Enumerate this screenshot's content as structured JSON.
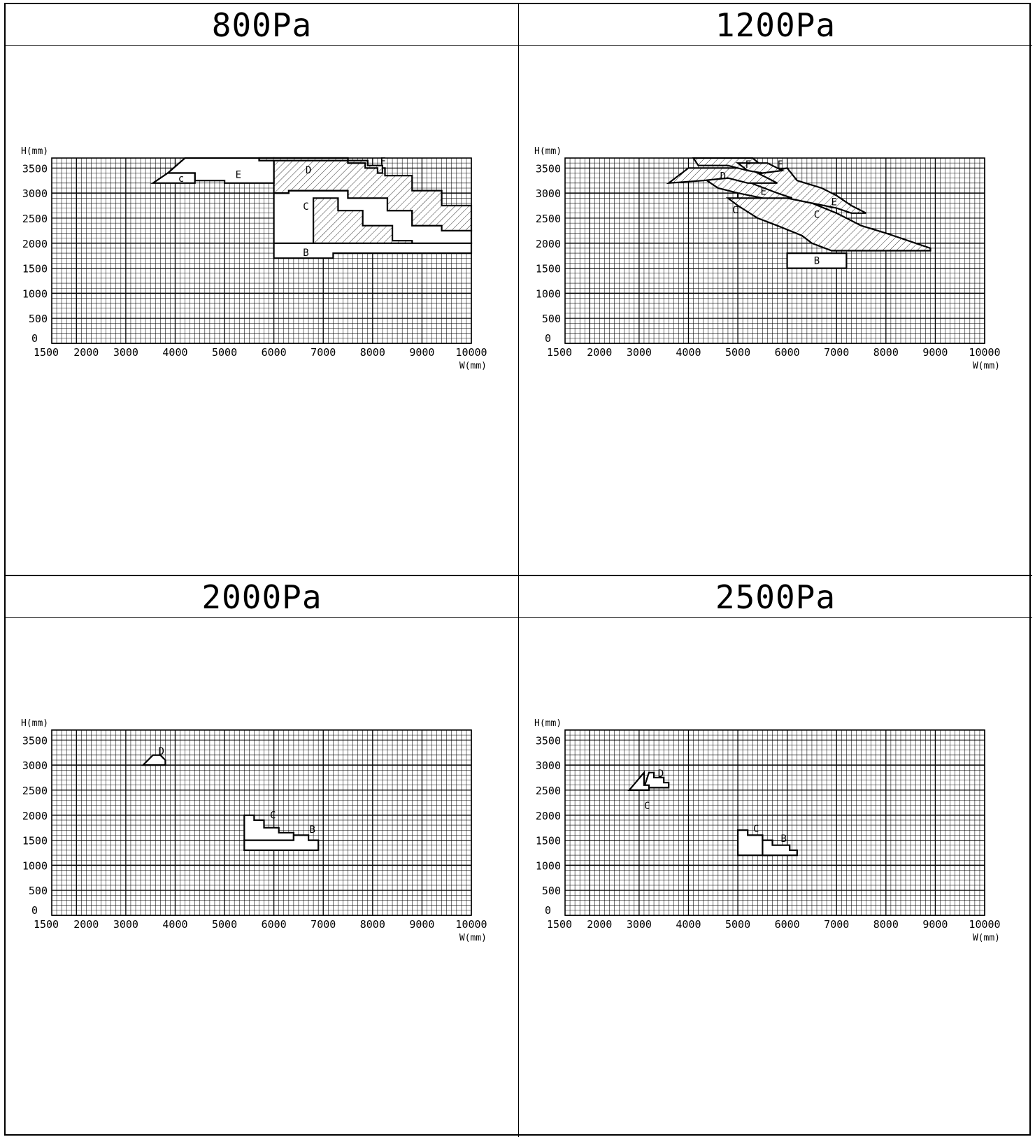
{
  "chart_data": [
    {
      "type": "area",
      "title": "800Pa",
      "xlabel": "W(mm)",
      "ylabel": "H(mm)",
      "x_ticks": [
        "1500",
        "2000",
        "3000",
        "4000",
        "5000",
        "6000",
        "7000",
        "8000",
        "9000",
        "10000"
      ],
      "y_ticks": [
        "0",
        "500",
        "1000",
        "1500",
        "2000",
        "2500",
        "3000",
        "3500"
      ],
      "xlim": [
        1500,
        10000
      ],
      "ylim": [
        0,
        3700
      ],
      "grid": true,
      "regions": [
        {
          "name": "B",
          "hatched": false,
          "label_at": [
            6650,
            1800
          ],
          "polygon": [
            [
              6000,
              1700
            ],
            [
              7200,
              1700
            ],
            [
              7200,
              1800
            ],
            [
              10000,
              1800
            ],
            [
              10000,
              2000
            ],
            [
              6000,
              2000
            ]
          ]
        },
        {
          "name": "C",
          "hatched": false,
          "label_at": [
            6650,
            2720
          ],
          "polygon": [
            [
              6000,
              2000
            ],
            [
              6000,
              3000
            ],
            [
              6300,
              3000
            ],
            [
              6300,
              3050
            ],
            [
              7500,
              3050
            ],
            [
              7500,
              2900
            ],
            [
              8300,
              2900
            ],
            [
              8300,
              2650
            ],
            [
              8800,
              2650
            ],
            [
              8800,
              2350
            ],
            [
              9400,
              2350
            ],
            [
              9400,
              2250
            ],
            [
              10000,
              2250
            ],
            [
              10000,
              2000
            ]
          ]
        },
        {
          "name": "C",
          "hatched": true,
          "label_at": null,
          "polygon": [
            [
              6800,
              2000
            ],
            [
              6800,
              2900
            ],
            [
              7300,
              2900
            ],
            [
              7300,
              2650
            ],
            [
              7800,
              2650
            ],
            [
              7800,
              2350
            ],
            [
              8400,
              2350
            ],
            [
              8400,
              2050
            ],
            [
              8800,
              2050
            ],
            [
              8800,
              2000
            ]
          ]
        },
        {
          "name": "D",
          "hatched": true,
          "label_at": [
            6700,
            3450
          ],
          "polygon": [
            [
              6000,
              3000
            ],
            [
              6000,
              3700
            ],
            [
              7500,
              3700
            ],
            [
              7500,
              3600
            ],
            [
              7900,
              3600
            ],
            [
              7900,
              3500
            ],
            [
              8250,
              3500
            ],
            [
              8250,
              3350
            ],
            [
              8800,
              3350
            ],
            [
              8800,
              3050
            ],
            [
              9400,
              3050
            ],
            [
              9400,
              2750
            ],
            [
              10000,
              2750
            ],
            [
              10000,
              2250
            ],
            [
              9400,
              2250
            ],
            [
              9400,
              2350
            ],
            [
              8800,
              2350
            ],
            [
              8800,
              2650
            ],
            [
              8300,
              2650
            ],
            [
              8300,
              2900
            ],
            [
              7500,
              2900
            ],
            [
              7500,
              3050
            ],
            [
              6300,
              3050
            ],
            [
              6300,
              3000
            ]
          ]
        },
        {
          "name": "E",
          "hatched": false,
          "label_at": [
            5280,
            3360
          ],
          "polygon": [
            [
              3850,
              3400
            ],
            [
              4200,
              3700
            ],
            [
              6000,
              3700
            ],
            [
              6000,
              3200
            ],
            [
              5000,
              3200
            ],
            [
              5000,
              3250
            ],
            [
              4400,
              3250
            ],
            [
              4400,
              3400
            ]
          ]
        },
        {
          "name": "c",
          "hatched": false,
          "label_at": [
            4120,
            3280
          ],
          "polygon": [
            [
              3550,
              3200
            ],
            [
              4400,
              3200
            ],
            [
              4400,
              3400
            ],
            [
              3850,
              3400
            ]
          ]
        },
        {
          "name": "F",
          "hatched": true,
          "label_at": [
            8210,
            3620
          ],
          "polygon": [
            [
              5700,
              3700
            ],
            [
              7500,
              3700
            ],
            [
              7500,
              3600
            ],
            [
              7850,
              3600
            ],
            [
              7850,
              3500
            ],
            [
              8100,
              3500
            ],
            [
              8100,
              3400
            ],
            [
              8200,
              3400
            ],
            [
              8200,
              3550
            ],
            [
              7900,
              3550
            ],
            [
              7900,
              3650
            ],
            [
              5700,
              3650
            ]
          ]
        }
      ]
    },
    {
      "type": "area",
      "title": "1200Pa",
      "xlabel": "W(mm)",
      "ylabel": "H(mm)",
      "x_ticks": [
        "1500",
        "2000",
        "3000",
        "4000",
        "5000",
        "6000",
        "7000",
        "8000",
        "9000",
        "10000"
      ],
      "y_ticks": [
        "0",
        "500",
        "1000",
        "1500",
        "2000",
        "2500",
        "3000",
        "3500"
      ],
      "xlim": [
        1500,
        10000
      ],
      "ylim": [
        0,
        3700
      ],
      "grid": true,
      "regions": [
        {
          "name": "B",
          "hatched": false,
          "label_at": [
            6600,
            1640
          ],
          "polygon": [
            [
              6000,
              1500
            ],
            [
              7200,
              1500
            ],
            [
              7200,
              1800
            ],
            [
              6000,
              1800
            ]
          ]
        },
        {
          "name": "C",
          "hatched": true,
          "label_at": [
            6600,
            2560
          ],
          "polygon": [
            [
              4800,
              2900
            ],
            [
              5000,
              2750
            ],
            [
              5400,
              2500
            ],
            [
              5800,
              2350
            ],
            [
              6300,
              2150
            ],
            [
              6500,
              2000
            ],
            [
              6900,
              1850
            ],
            [
              8900,
              1850
            ],
            [
              8900,
              1900
            ],
            [
              8600,
              2000
            ],
            [
              8300,
              2100
            ],
            [
              8000,
              2200
            ],
            [
              7500,
              2350
            ],
            [
              7300,
              2450
            ],
            [
              7000,
              2600
            ],
            [
              6500,
              2800
            ],
            [
              6000,
              2900
            ]
          ]
        },
        {
          "name": "E",
          "hatched": true,
          "label_at": [
            6950,
            2810
          ],
          "polygon": [
            [
              5000,
              3200
            ],
            [
              5500,
              3400
            ],
            [
              6000,
              3500
            ],
            [
              6200,
              3250
            ],
            [
              6700,
              3100
            ],
            [
              7000,
              2950
            ],
            [
              7300,
              2750
            ],
            [
              7600,
              2600
            ],
            [
              7300,
              2600
            ],
            [
              7000,
              2700
            ],
            [
              6500,
              2800
            ],
            [
              6000,
              2900
            ],
            [
              5000,
              2900
            ]
          ]
        },
        {
          "name": "E",
          "hatched": true,
          "label_at": [
            5520,
            3020
          ],
          "polygon": [
            [
              4300,
              3300
            ],
            [
              5000,
              3300
            ],
            [
              5400,
              3150
            ],
            [
              5800,
              3000
            ],
            [
              6100,
              2900
            ],
            [
              5500,
              2900
            ],
            [
              5000,
              3000
            ],
            [
              4600,
              3100
            ]
          ]
        },
        {
          "name": "D",
          "hatched": true,
          "label_at": [
            4700,
            3330
          ],
          "polygon": [
            [
              3600,
              3200
            ],
            [
              4000,
              3500
            ],
            [
              5200,
              3500
            ],
            [
              5600,
              3300
            ],
            [
              5800,
              3200
            ],
            [
              5200,
              3200
            ],
            [
              4800,
              3300
            ],
            [
              4300,
              3250
            ]
          ]
        },
        {
          "name": "F",
          "hatched": true,
          "label_at": [
            5210,
            3560
          ],
          "polygon": [
            [
              4100,
              3700
            ],
            [
              5300,
              3700
            ],
            [
              5600,
              3450
            ],
            [
              5200,
              3450
            ],
            [
              4800,
              3550
            ],
            [
              4200,
              3550
            ]
          ]
        },
        {
          "name": "F",
          "hatched": true,
          "label_at": [
            5860,
            3560
          ],
          "polygon": [
            [
              5000,
              3600
            ],
            [
              5600,
              3600
            ],
            [
              5900,
              3450
            ],
            [
              5500,
              3400
            ],
            [
              5200,
              3450
            ]
          ]
        },
        {
          "name": "C",
          "hatched": false,
          "label_at": [
            4950,
            2650
          ],
          "polygon": [
            [
              4950,
              2700
            ],
            [
              5000,
              2700
            ]
          ]
        }
      ]
    },
    {
      "type": "area",
      "title": "2000Pa",
      "xlabel": "W(mm)",
      "ylabel": "H(mm)",
      "x_ticks": [
        "1500",
        "2000",
        "3000",
        "4000",
        "5000",
        "6000",
        "7000",
        "8000",
        "9000",
        "10000"
      ],
      "y_ticks": [
        "0",
        "500",
        "1000",
        "1500",
        "2000",
        "2500",
        "3000",
        "3500"
      ],
      "xlim": [
        1500,
        10000
      ],
      "ylim": [
        0,
        3700
      ],
      "grid": true,
      "regions": [
        {
          "name": "D",
          "hatched": false,
          "label_at": [
            3720,
            3270
          ],
          "polygon": [
            [
              3350,
              3000
            ],
            [
              3800,
              3000
            ],
            [
              3800,
              3100
            ],
            [
              3700,
              3200
            ],
            [
              3550,
              3200
            ]
          ]
        },
        {
          "name": "C",
          "hatched": false,
          "label_at": [
            5980,
            1990
          ],
          "polygon": [
            [
              5400,
              1500
            ],
            [
              5400,
              2000
            ],
            [
              5600,
              2000
            ],
            [
              5600,
              1900
            ],
            [
              5800,
              1900
            ],
            [
              5800,
              1750
            ],
            [
              6100,
              1750
            ],
            [
              6100,
              1650
            ],
            [
              6400,
              1650
            ],
            [
              6400,
              1500
            ]
          ]
        },
        {
          "name": "B",
          "hatched": false,
          "label_at": [
            6780,
            1700
          ],
          "polygon": [
            [
              5400,
              1300
            ],
            [
              6900,
              1300
            ],
            [
              6900,
              1500
            ],
            [
              6700,
              1500
            ],
            [
              6700,
              1600
            ],
            [
              6400,
              1600
            ],
            [
              6400,
              1500
            ],
            [
              5400,
              1500
            ]
          ]
        }
      ]
    },
    {
      "type": "area",
      "title": "2500Pa",
      "xlabel": "W(mm)",
      "ylabel": "H(mm)",
      "x_ticks": [
        "1500",
        "2000",
        "3000",
        "4000",
        "5000",
        "6000",
        "7000",
        "8000",
        "9000",
        "10000"
      ],
      "y_ticks": [
        "0",
        "500",
        "1000",
        "1500",
        "2000",
        "2500",
        "3000",
        "3500"
      ],
      "xlim": [
        1500,
        10000
      ],
      "ylim": [
        0,
        3700
      ],
      "grid": true,
      "regions": [
        {
          "name": "D",
          "hatched": false,
          "label_at": [
            3440,
            2820
          ],
          "polygon": [
            [
              3100,
              2550
            ],
            [
              3600,
              2550
            ],
            [
              3600,
              2650
            ],
            [
              3500,
              2650
            ],
            [
              3500,
              2750
            ],
            [
              3300,
              2750
            ],
            [
              3300,
              2850
            ],
            [
              3200,
              2850
            ]
          ]
        },
        {
          "name": "C",
          "hatched": false,
          "label_at": [
            3160,
            2180
          ],
          "polygon": [
            [
              2800,
              2500
            ],
            [
              3200,
              2500
            ],
            [
              3200,
              2600
            ],
            [
              3100,
              2600
            ],
            [
              3100,
              2850
            ]
          ]
        },
        {
          "name": "C",
          "hatched": false,
          "label_at": [
            5370,
            1720
          ],
          "polygon": [
            [
              5000,
              1200
            ],
            [
              5000,
              1700
            ],
            [
              5200,
              1700
            ],
            [
              5200,
              1600
            ],
            [
              5500,
              1600
            ],
            [
              5500,
              1500
            ],
            [
              5700,
              1500
            ],
            [
              5700,
              1200
            ]
          ]
        },
        {
          "name": "B",
          "hatched": false,
          "label_at": [
            5930,
            1520
          ],
          "polygon": [
            [
              5500,
              1200
            ],
            [
              6200,
              1200
            ],
            [
              6200,
              1300
            ],
            [
              6050,
              1300
            ],
            [
              6050,
              1400
            ],
            [
              5700,
              1400
            ],
            [
              5700,
              1500
            ],
            [
              5500,
              1500
            ]
          ]
        }
      ]
    }
  ]
}
